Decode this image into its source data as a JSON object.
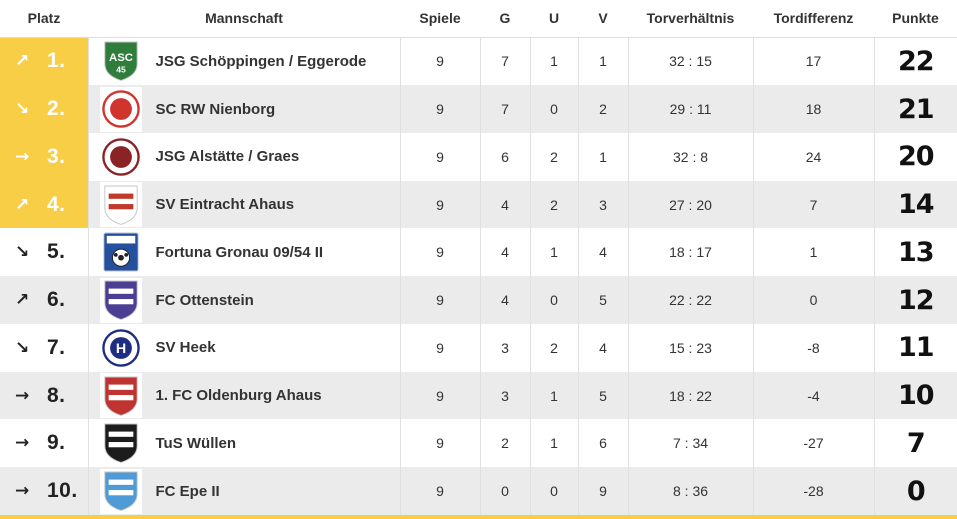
{
  "colors": {
    "accent_yellow": "#f7ce46",
    "row_alt": "#ebebeb",
    "border": "#e0e0e0",
    "text": "#333333",
    "pos_highlight_text": "#ffffff",
    "pos_normal_text": "#222222",
    "punkte_text": "#111111"
  },
  "columns": [
    "Platz",
    "Mannschaft",
    "Spiele",
    "G",
    "U",
    "V",
    "Torverhältnis",
    "Tordifferenz",
    "Punkte"
  ],
  "trend_glyphs": {
    "up": "↗",
    "down": "↘",
    "same": "→"
  },
  "teams": [
    {
      "pos": "1.",
      "trend": "up",
      "name": "JSG Schöppingen / Eggerode",
      "spiele": "9",
      "g": "7",
      "u": "1",
      "v": "1",
      "torverhaeltnis": "32 : 15",
      "tordifferenz": "17",
      "punkte": "22",
      "highlight": true,
      "logo": {
        "shape": "shield",
        "c1": "#2f7d3b",
        "c2": "#ffffff",
        "label": "ASC"
      }
    },
    {
      "pos": "2.",
      "trend": "down",
      "name": "SC RW Nienborg",
      "spiele": "9",
      "g": "7",
      "u": "0",
      "v": "2",
      "torverhaeltnis": "29 : 11",
      "tordifferenz": "18",
      "punkte": "21",
      "highlight": true,
      "logo": {
        "shape": "circle",
        "c1": "#ffffff",
        "c2": "#d0342c",
        "label": ""
      }
    },
    {
      "pos": "3.",
      "trend": "same",
      "name": "JSG Alstätte / Graes",
      "spiele": "9",
      "g": "6",
      "u": "2",
      "v": "1",
      "torverhaeltnis": "32 : 8",
      "tordifferenz": "24",
      "punkte": "20",
      "highlight": true,
      "logo": {
        "shape": "circle",
        "c1": "#ffffff",
        "c2": "#8a2424",
        "label": ""
      }
    },
    {
      "pos": "4.",
      "trend": "up",
      "name": "SV Eintracht Ahaus",
      "spiele": "9",
      "g": "4",
      "u": "2",
      "v": "3",
      "torverhaeltnis": "27 : 20",
      "tordifferenz": "7",
      "punkte": "14",
      "highlight": true,
      "logo": {
        "shape": "shield",
        "c1": "#ffffff",
        "c2": "#c0392b",
        "label": ""
      }
    },
    {
      "pos": "5.",
      "trend": "down",
      "name": "Fortuna Gronau 09/54 II",
      "spiele": "9",
      "g": "4",
      "u": "1",
      "v": "4",
      "torverhaeltnis": "18 : 17",
      "tordifferenz": "1",
      "punkte": "13",
      "highlight": false,
      "logo": {
        "shape": "square",
        "c1": "#24509e",
        "c2": "#ffffff",
        "label": ""
      }
    },
    {
      "pos": "6.",
      "trend": "up",
      "name": "FC Ottenstein",
      "spiele": "9",
      "g": "4",
      "u": "0",
      "v": "5",
      "torverhaeltnis": "22 : 22",
      "tordifferenz": "0",
      "punkte": "12",
      "highlight": false,
      "logo": {
        "shape": "shield",
        "c1": "#4b3f94",
        "c2": "#ffffff",
        "label": ""
      }
    },
    {
      "pos": "7.",
      "trend": "down",
      "name": "SV Heek",
      "spiele": "9",
      "g": "3",
      "u": "2",
      "v": "4",
      "torverhaeltnis": "15 : 23",
      "tordifferenz": "-8",
      "punkte": "11",
      "highlight": false,
      "logo": {
        "shape": "circle",
        "c1": "#ffffff",
        "c2": "#1d2e83",
        "label": "H"
      }
    },
    {
      "pos": "8.",
      "trend": "same",
      "name": "1. FC Oldenburg Ahaus",
      "spiele": "9",
      "g": "3",
      "u": "1",
      "v": "5",
      "torverhaeltnis": "18 : 22",
      "tordifferenz": "-4",
      "punkte": "10",
      "highlight": false,
      "logo": {
        "shape": "shield",
        "c1": "#bf3430",
        "c2": "#ffffff",
        "label": ""
      }
    },
    {
      "pos": "9.",
      "trend": "same",
      "name": "TuS Wüllen",
      "spiele": "9",
      "g": "2",
      "u": "1",
      "v": "6",
      "torverhaeltnis": "7 : 34",
      "tordifferenz": "-27",
      "punkte": "7",
      "highlight": false,
      "logo": {
        "shape": "shield",
        "c1": "#1c1c1c",
        "c2": "#ffffff",
        "label": ""
      }
    },
    {
      "pos": "10.",
      "trend": "same",
      "name": "FC Epe II",
      "spiele": "9",
      "g": "0",
      "u": "0",
      "v": "9",
      "torverhaeltnis": "8 : 36",
      "tordifferenz": "-28",
      "punkte": "0",
      "highlight": false,
      "logo": {
        "shape": "shield",
        "c1": "#4f9bd5",
        "c2": "#ffffff",
        "label": ""
      }
    }
  ]
}
